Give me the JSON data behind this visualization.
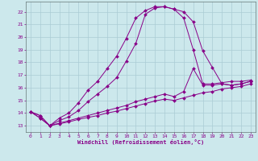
{
  "xlabel": "Windchill (Refroidissement éolien,°C)",
  "bg_color": "#cce8ec",
  "grid_color": "#aaccd4",
  "line_color": "#880088",
  "xlim": [
    -0.5,
    23.5
  ],
  "ylim": [
    12.5,
    22.8
  ],
  "xticks": [
    0,
    1,
    2,
    3,
    4,
    5,
    6,
    7,
    8,
    9,
    10,
    11,
    12,
    13,
    14,
    15,
    16,
    17,
    18,
    19,
    20,
    21,
    22,
    23
  ],
  "yticks": [
    13,
    14,
    15,
    16,
    17,
    18,
    19,
    20,
    21,
    22
  ],
  "line1_x": [
    0,
    1,
    2,
    3,
    4,
    5,
    6,
    7,
    8,
    9,
    10,
    11,
    12,
    13,
    14,
    15,
    16,
    17,
    18,
    19,
    20,
    21,
    22,
    23
  ],
  "line1_y": [
    14.1,
    13.8,
    13.0,
    13.6,
    14.0,
    14.8,
    15.8,
    16.5,
    17.5,
    18.5,
    19.9,
    21.5,
    22.1,
    22.4,
    22.4,
    22.2,
    21.5,
    19.0,
    16.3,
    16.3,
    16.4,
    16.5,
    16.5,
    16.6
  ],
  "line2_x": [
    0,
    1,
    2,
    3,
    4,
    5,
    6,
    7,
    8,
    9,
    10,
    11,
    12,
    13,
    14,
    15,
    16,
    17,
    18,
    19,
    20,
    21,
    22,
    23
  ],
  "line2_y": [
    14.1,
    13.8,
    13.0,
    13.4,
    13.7,
    14.2,
    14.9,
    15.5,
    16.1,
    16.8,
    18.1,
    19.5,
    21.8,
    22.3,
    22.4,
    22.2,
    22.0,
    21.2,
    18.9,
    17.6,
    16.3,
    16.2,
    16.3,
    16.5
  ],
  "line3_x": [
    0,
    1,
    2,
    3,
    4,
    5,
    6,
    7,
    8,
    9,
    10,
    11,
    12,
    13,
    14,
    15,
    16,
    17,
    18,
    19,
    20,
    21,
    22,
    23
  ],
  "line3_y": [
    14.1,
    13.6,
    13.0,
    13.2,
    13.4,
    13.6,
    13.8,
    14.0,
    14.2,
    14.4,
    14.6,
    14.9,
    15.1,
    15.3,
    15.5,
    15.3,
    15.7,
    17.5,
    16.2,
    16.2,
    16.3,
    16.2,
    16.3,
    16.5
  ],
  "line4_x": [
    0,
    1,
    2,
    3,
    4,
    5,
    6,
    7,
    8,
    9,
    10,
    11,
    12,
    13,
    14,
    15,
    16,
    17,
    18,
    19,
    20,
    21,
    22,
    23
  ],
  "line4_y": [
    14.1,
    13.6,
    13.0,
    13.15,
    13.3,
    13.5,
    13.65,
    13.8,
    14.0,
    14.15,
    14.35,
    14.55,
    14.75,
    14.95,
    15.1,
    15.0,
    15.2,
    15.4,
    15.6,
    15.7,
    15.9,
    16.0,
    16.1,
    16.3
  ]
}
